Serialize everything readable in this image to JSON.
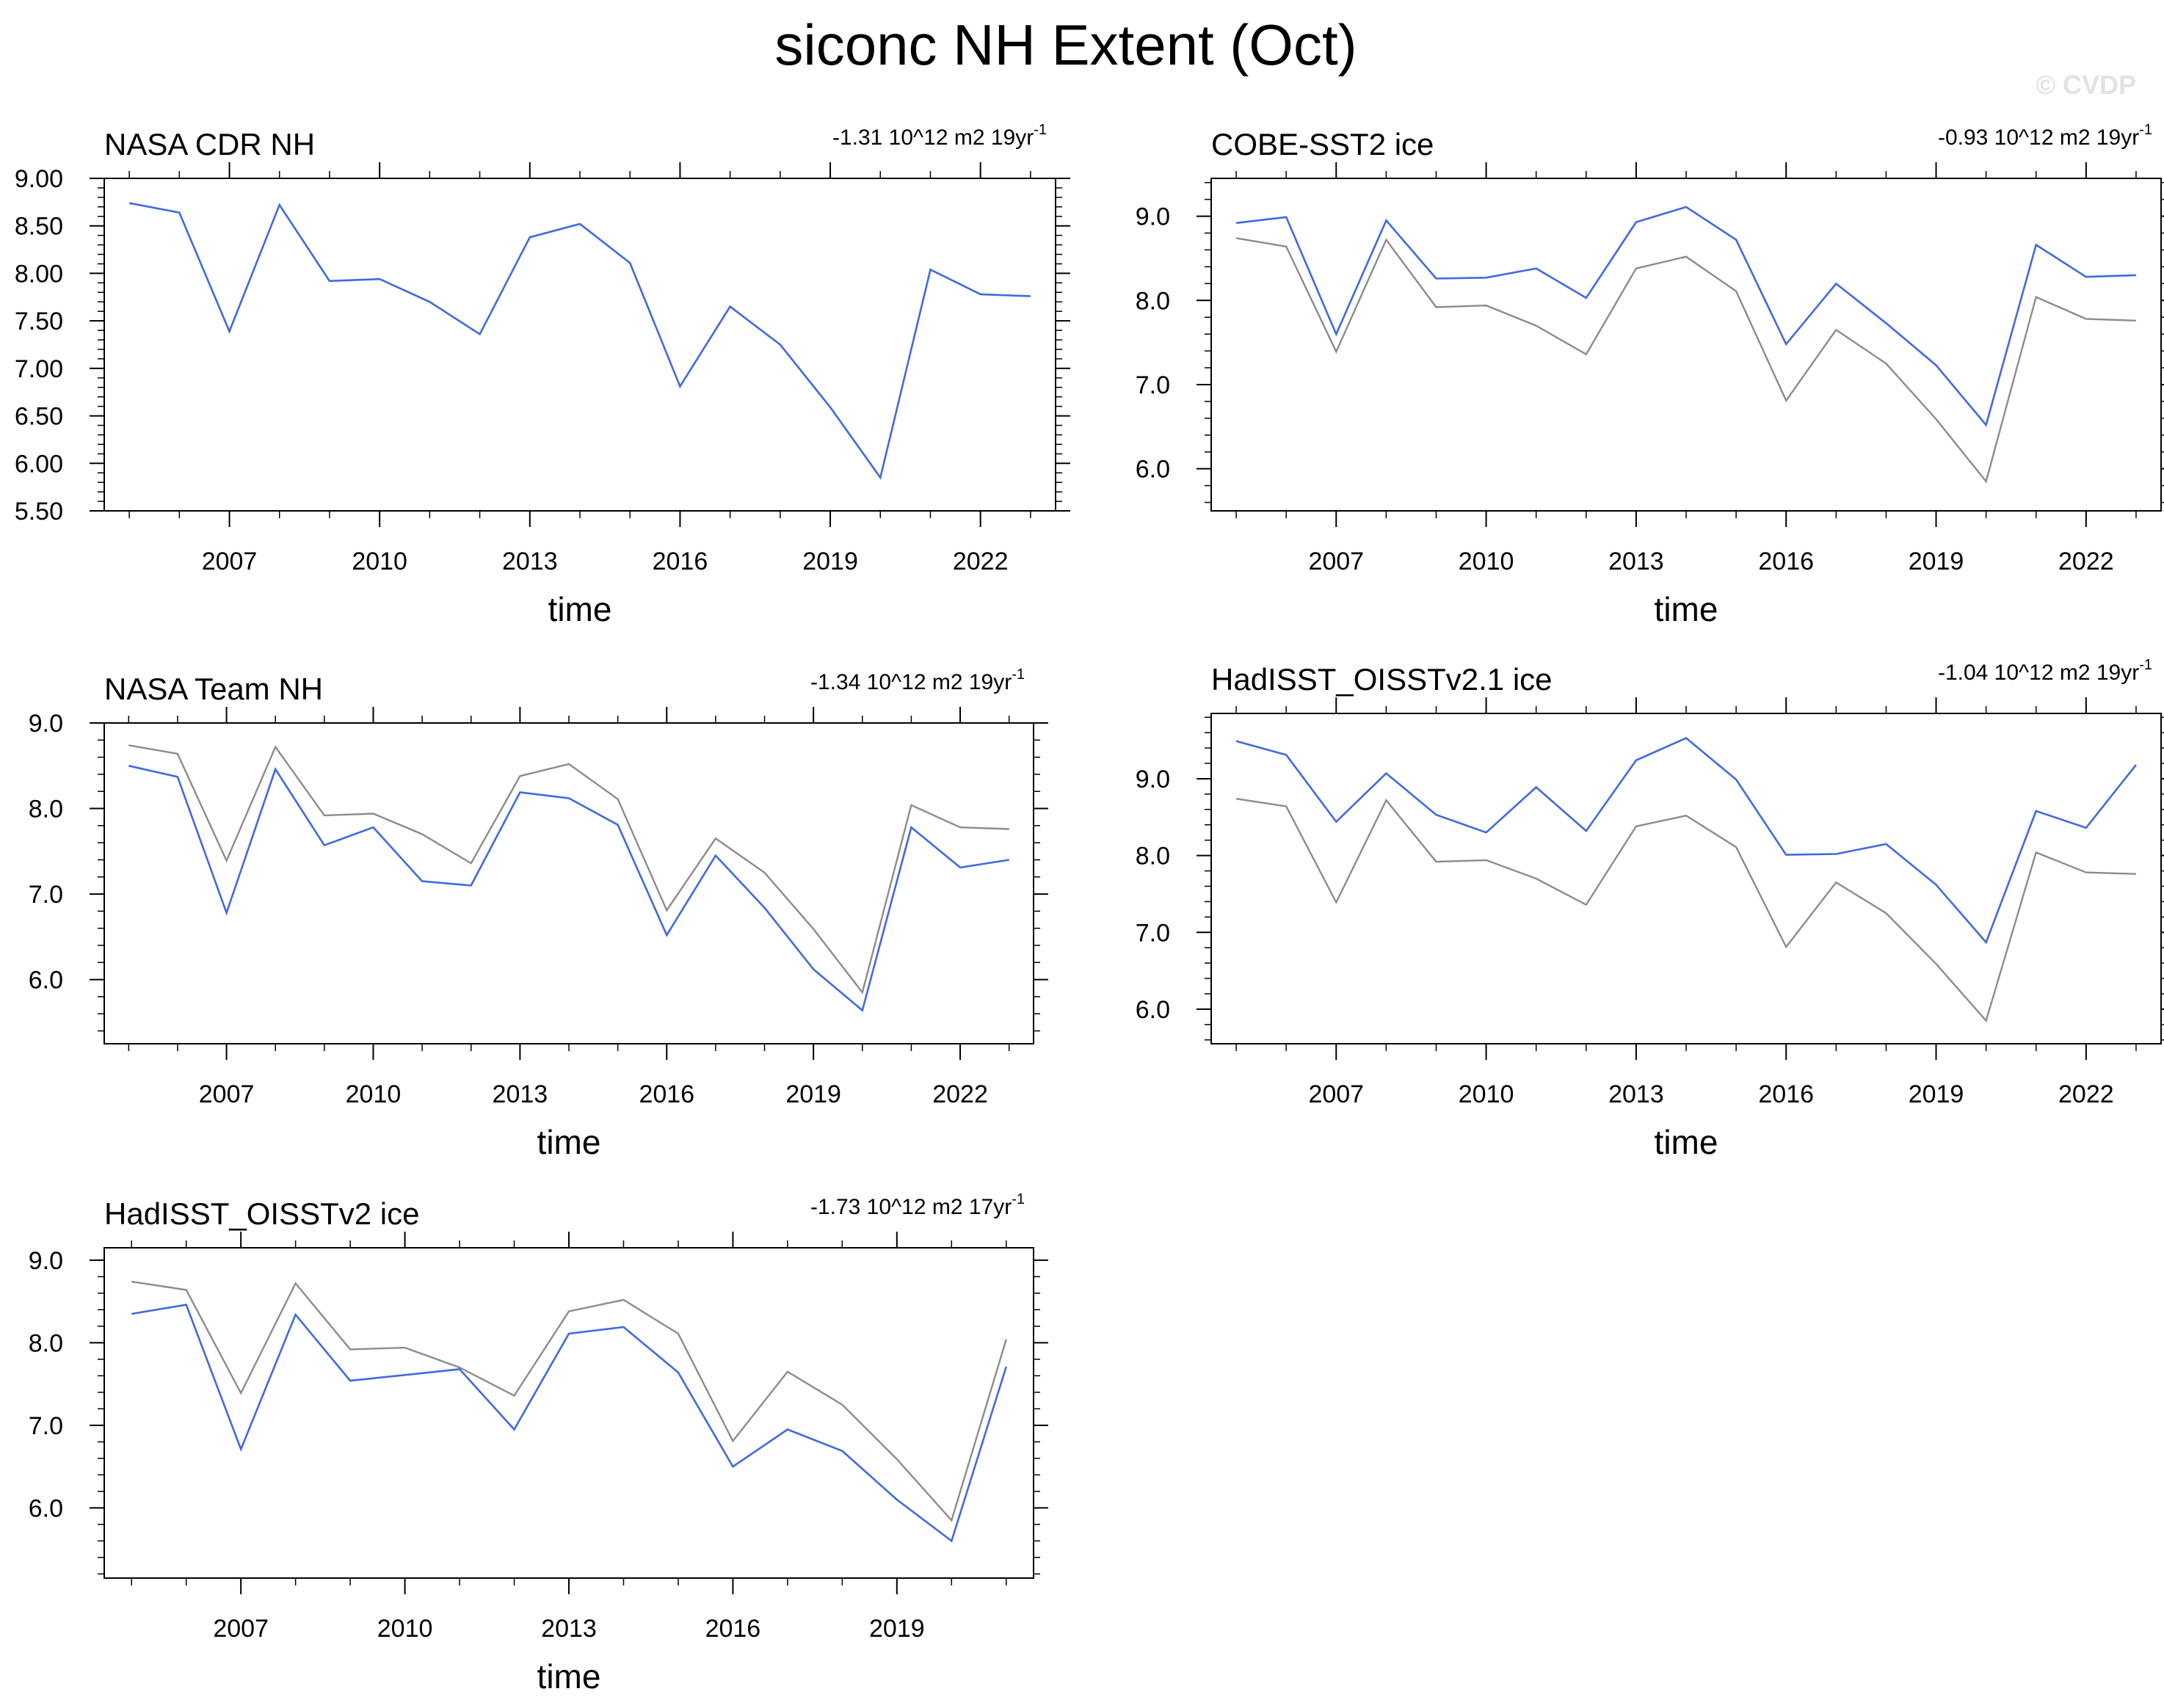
{
  "figure": {
    "title": "siconc NH Extent (Oct)",
    "watermark": "© CVDP",
    "colors": {
      "observed": "#4169E1",
      "reference": "#8C8C8C"
    }
  },
  "chart_data": [
    {
      "type": "line",
      "title": "NASA CDR NH",
      "trend": {
        "text": "-1.31 10^12 m2 19yr",
        "sup": "-1"
      },
      "xlabel": "time",
      "ylabel": "",
      "xlim": [
        2004.5,
        2023.5
      ],
      "ylim": [
        5.5,
        9.0
      ],
      "yticks": [
        5.5,
        6.0,
        6.5,
        7.0,
        7.5,
        8.0,
        8.5,
        9.0
      ],
      "ytick_labels": [
        "5.50",
        "6.00",
        "6.50",
        "7.00",
        "7.50",
        "8.00",
        "8.50",
        "9.00"
      ],
      "xticks": [
        2007,
        2010,
        2013,
        2016,
        2019,
        2022
      ],
      "x": [
        2005,
        2006,
        2007,
        2008,
        2009,
        2010,
        2011,
        2012,
        2013,
        2014,
        2015,
        2016,
        2017,
        2018,
        2019,
        2020,
        2021,
        2022,
        2023
      ],
      "series": [
        {
          "role": "observed",
          "values": [
            8.74,
            8.64,
            7.39,
            8.72,
            7.92,
            7.94,
            7.7,
            7.36,
            8.38,
            8.52,
            8.11,
            6.81,
            7.65,
            7.25,
            6.59,
            5.85,
            8.04,
            7.78,
            7.76
          ]
        }
      ]
    },
    {
      "type": "line",
      "title": "COBE-SST2 ice",
      "trend": {
        "text": "-0.93 10^12 m2 19yr",
        "sup": "-1"
      },
      "xlabel": "time",
      "ylabel": "",
      "xlim": [
        2004.5,
        2023.5
      ],
      "ylim": [
        5.5,
        9.45
      ],
      "yticks": [
        6.0,
        7.0,
        8.0,
        9.0
      ],
      "ytick_labels": [
        "6.0",
        "7.0",
        "8.0",
        "9.0"
      ],
      "xticks": [
        2007,
        2010,
        2013,
        2016,
        2019,
        2022
      ],
      "x": [
        2005,
        2006,
        2007,
        2008,
        2009,
        2010,
        2011,
        2012,
        2013,
        2014,
        2015,
        2016,
        2017,
        2018,
        2019,
        2020,
        2021,
        2022,
        2023
      ],
      "series": [
        {
          "role": "observed",
          "values": [
            8.92,
            8.99,
            7.6,
            8.95,
            8.26,
            8.27,
            8.38,
            8.03,
            8.93,
            9.11,
            8.72,
            7.48,
            8.2,
            7.73,
            7.23,
            6.52,
            8.66,
            8.28,
            8.3
          ]
        },
        {
          "role": "reference",
          "values": [
            8.74,
            8.64,
            7.39,
            8.72,
            7.92,
            7.94,
            7.7,
            7.36,
            8.38,
            8.52,
            8.11,
            6.81,
            7.65,
            7.25,
            6.59,
            5.85,
            8.04,
            7.78,
            7.76
          ]
        }
      ]
    },
    {
      "type": "line",
      "title": "NASA Team NH",
      "trend": {
        "text": "-1.34 10^12 m2 19yr",
        "sup": "-1"
      },
      "xlabel": "time",
      "ylabel": "",
      "xlim": [
        2004.5,
        2023.5
      ],
      "ylim": [
        5.25,
        9.0
      ],
      "yticks": [
        6.0,
        7.0,
        8.0,
        9.0
      ],
      "ytick_labels": [
        "6.0",
        "7.0",
        "8.0",
        "9.0"
      ],
      "xticks": [
        2007,
        2010,
        2013,
        2016,
        2019,
        2022
      ],
      "x": [
        2005,
        2006,
        2007,
        2008,
        2009,
        2010,
        2011,
        2012,
        2013,
        2014,
        2015,
        2016,
        2017,
        2018,
        2019,
        2020,
        2021,
        2022,
        2023
      ],
      "series": [
        {
          "role": "observed",
          "values": [
            8.5,
            8.37,
            6.78,
            8.46,
            7.57,
            7.78,
            7.15,
            7.1,
            8.19,
            8.12,
            7.81,
            6.52,
            7.45,
            6.84,
            6.12,
            5.64,
            7.78,
            7.31,
            7.4
          ]
        },
        {
          "role": "reference",
          "values": [
            8.74,
            8.64,
            7.39,
            8.72,
            7.92,
            7.94,
            7.7,
            7.36,
            8.38,
            8.52,
            8.11,
            6.81,
            7.65,
            7.25,
            6.59,
            5.85,
            8.04,
            7.78,
            7.76
          ]
        }
      ]
    },
    {
      "type": "line",
      "title": "HadISST_OISSTv2.1 ice",
      "trend": {
        "text": "-1.04 10^12 m2 19yr",
        "sup": "-1"
      },
      "xlabel": "time",
      "ylabel": "",
      "xlim": [
        2004.5,
        2023.5
      ],
      "ylim": [
        5.55,
        9.85
      ],
      "yticks": [
        6.0,
        7.0,
        8.0,
        9.0
      ],
      "ytick_labels": [
        "6.0",
        "7.0",
        "8.0",
        "9.0"
      ],
      "xticks": [
        2007,
        2010,
        2013,
        2016,
        2019,
        2022
      ],
      "x": [
        2005,
        2006,
        2007,
        2008,
        2009,
        2010,
        2011,
        2012,
        2013,
        2014,
        2015,
        2016,
        2017,
        2018,
        2019,
        2020,
        2021,
        2022,
        2023
      ],
      "series": [
        {
          "role": "observed",
          "values": [
            9.49,
            9.31,
            8.44,
            9.07,
            8.53,
            8.3,
            8.89,
            8.32,
            9.24,
            9.53,
            8.99,
            8.01,
            8.02,
            8.15,
            7.62,
            6.87,
            8.58,
            8.36,
            9.18
          ]
        },
        {
          "role": "reference",
          "values": [
            8.74,
            8.64,
            7.39,
            8.72,
            7.92,
            7.94,
            7.7,
            7.36,
            8.38,
            8.52,
            8.11,
            6.81,
            7.65,
            7.25,
            6.59,
            5.85,
            8.04,
            7.78,
            7.76
          ]
        }
      ]
    },
    {
      "type": "line",
      "title": "HadISST_OISSTv2 ice",
      "trend": {
        "text": "-1.73 10^12 m2 17yr",
        "sup": "-1"
      },
      "xlabel": "time",
      "ylabel": "",
      "xlim": [
        2004.5,
        2021.5
      ],
      "ylim": [
        5.15,
        9.15
      ],
      "yticks": [
        6.0,
        7.0,
        8.0,
        9.0
      ],
      "ytick_labels": [
        "6.0",
        "7.0",
        "8.0",
        "9.0"
      ],
      "xticks": [
        2007,
        2010,
        2013,
        2016,
        2019
      ],
      "x": [
        2005,
        2006,
        2007,
        2008,
        2009,
        2010,
        2011,
        2012,
        2013,
        2014,
        2015,
        2016,
        2017,
        2018,
        2019,
        2020,
        2021
      ],
      "series": [
        {
          "role": "observed",
          "values": [
            8.35,
            8.46,
            6.71,
            8.34,
            7.54,
            7.61,
            7.68,
            6.95,
            8.11,
            8.19,
            7.64,
            6.5,
            6.95,
            6.69,
            6.1,
            5.6,
            7.71
          ]
        },
        {
          "role": "reference",
          "values": [
            8.74,
            8.64,
            7.39,
            8.72,
            7.92,
            7.94,
            7.7,
            7.36,
            8.38,
            8.52,
            8.11,
            6.81,
            7.65,
            7.25,
            6.59,
            5.85,
            8.04
          ]
        }
      ]
    }
  ]
}
